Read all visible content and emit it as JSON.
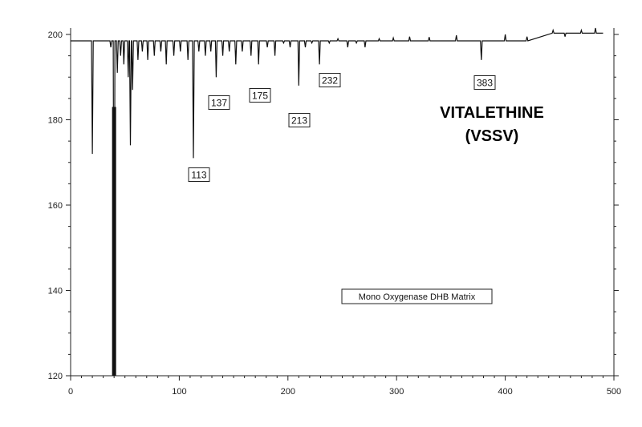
{
  "chart_data": {
    "type": "line",
    "title_lines": [
      "VITALETHINE",
      "(VSSV)"
    ],
    "legend_label": "Mono Oxygenase DHB Matrix",
    "xlim": [
      0,
      500
    ],
    "ylim": [
      120,
      200
    ],
    "x_ticks": [
      0,
      100,
      200,
      300,
      400,
      500
    ],
    "y_ticks": [
      120,
      140,
      160,
      180,
      200
    ],
    "baseline": 198.5,
    "peak_labels": [
      {
        "label": "113",
        "x": 113,
        "y": 171
      },
      {
        "label": "137",
        "x": 134,
        "y": 190
      },
      {
        "label": "175",
        "x": 173,
        "y": 193
      },
      {
        "label": "213",
        "x": 210,
        "y": 188
      },
      {
        "label": "232",
        "x": 229,
        "y": 193
      },
      {
        "label": "383",
        "x": 378,
        "y": 194
      }
    ],
    "peaks": [
      {
        "x": 20,
        "y": 172
      },
      {
        "x": 37,
        "y": 197
      },
      {
        "x": 40,
        "y": 120
      },
      {
        "x": 43,
        "y": 191
      },
      {
        "x": 46,
        "y": 195
      },
      {
        "x": 49,
        "y": 193
      },
      {
        "x": 53,
        "y": 190
      },
      {
        "x": 55,
        "y": 174
      },
      {
        "x": 57,
        "y": 187
      },
      {
        "x": 62,
        "y": 194
      },
      {
        "x": 66,
        "y": 196
      },
      {
        "x": 71,
        "y": 194
      },
      {
        "x": 77,
        "y": 195
      },
      {
        "x": 83,
        "y": 196
      },
      {
        "x": 88,
        "y": 193
      },
      {
        "x": 95,
        "y": 195
      },
      {
        "x": 101,
        "y": 196
      },
      {
        "x": 108,
        "y": 194
      },
      {
        "x": 113,
        "y": 171
      },
      {
        "x": 118,
        "y": 196
      },
      {
        "x": 124,
        "y": 195
      },
      {
        "x": 129,
        "y": 196
      },
      {
        "x": 134,
        "y": 190
      },
      {
        "x": 140,
        "y": 195
      },
      {
        "x": 146,
        "y": 196
      },
      {
        "x": 152,
        "y": 193
      },
      {
        "x": 158,
        "y": 196
      },
      {
        "x": 166,
        "y": 195
      },
      {
        "x": 173,
        "y": 193
      },
      {
        "x": 181,
        "y": 197
      },
      {
        "x": 188,
        "y": 195
      },
      {
        "x": 196,
        "y": 198
      },
      {
        "x": 202,
        "y": 197
      },
      {
        "x": 210,
        "y": 188
      },
      {
        "x": 216,
        "y": 197
      },
      {
        "x": 222,
        "y": 198
      },
      {
        "x": 229,
        "y": 193
      },
      {
        "x": 238,
        "y": 198
      },
      {
        "x": 246,
        "y": 199
      },
      {
        "x": 255,
        "y": 197
      },
      {
        "x": 263,
        "y": 198
      },
      {
        "x": 271,
        "y": 197
      },
      {
        "x": 284,
        "y": 199
      },
      {
        "x": 297,
        "y": 199.2
      },
      {
        "x": 312,
        "y": 199.5
      },
      {
        "x": 330,
        "y": 199.4
      },
      {
        "x": 355,
        "y": 199.8
      },
      {
        "x": 378,
        "y": 194
      },
      {
        "x": 400,
        "y": 200
      },
      {
        "x": 420,
        "y": 199.5
      },
      {
        "x": 444,
        "y": 201
      },
      {
        "x": 455,
        "y": 199.5
      },
      {
        "x": 470,
        "y": 201
      },
      {
        "x": 483,
        "y": 201.5
      }
    ]
  }
}
